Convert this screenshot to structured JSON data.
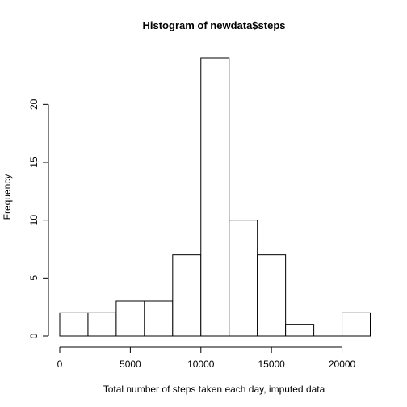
{
  "chart_data": {
    "type": "bar",
    "title": "Histogram of newdata$steps",
    "xlabel": "Total number of steps taken each day, imputed data",
    "ylabel": "Frequency",
    "bins": [
      {
        "start": 0,
        "end": 2000,
        "count": 2
      },
      {
        "start": 2000,
        "end": 4000,
        "count": 2
      },
      {
        "start": 4000,
        "end": 6000,
        "count": 3
      },
      {
        "start": 6000,
        "end": 8000,
        "count": 3
      },
      {
        "start": 8000,
        "end": 10000,
        "count": 7
      },
      {
        "start": 10000,
        "end": 12000,
        "count": 24
      },
      {
        "start": 12000,
        "end": 14000,
        "count": 10
      },
      {
        "start": 14000,
        "end": 16000,
        "count": 7
      },
      {
        "start": 16000,
        "end": 18000,
        "count": 1
      },
      {
        "start": 18000,
        "end": 20000,
        "count": 0
      },
      {
        "start": 20000,
        "end": 22000,
        "count": 2
      }
    ],
    "xticks": [
      0,
      5000,
      10000,
      15000,
      20000
    ],
    "yticks": [
      0,
      5,
      10,
      15,
      20
    ],
    "xlim": [
      0,
      22000
    ],
    "ylim": [
      0,
      24
    ],
    "grid": false,
    "colors": {
      "bar_fill": "#ffffff",
      "bar_stroke": "#000000"
    }
  }
}
